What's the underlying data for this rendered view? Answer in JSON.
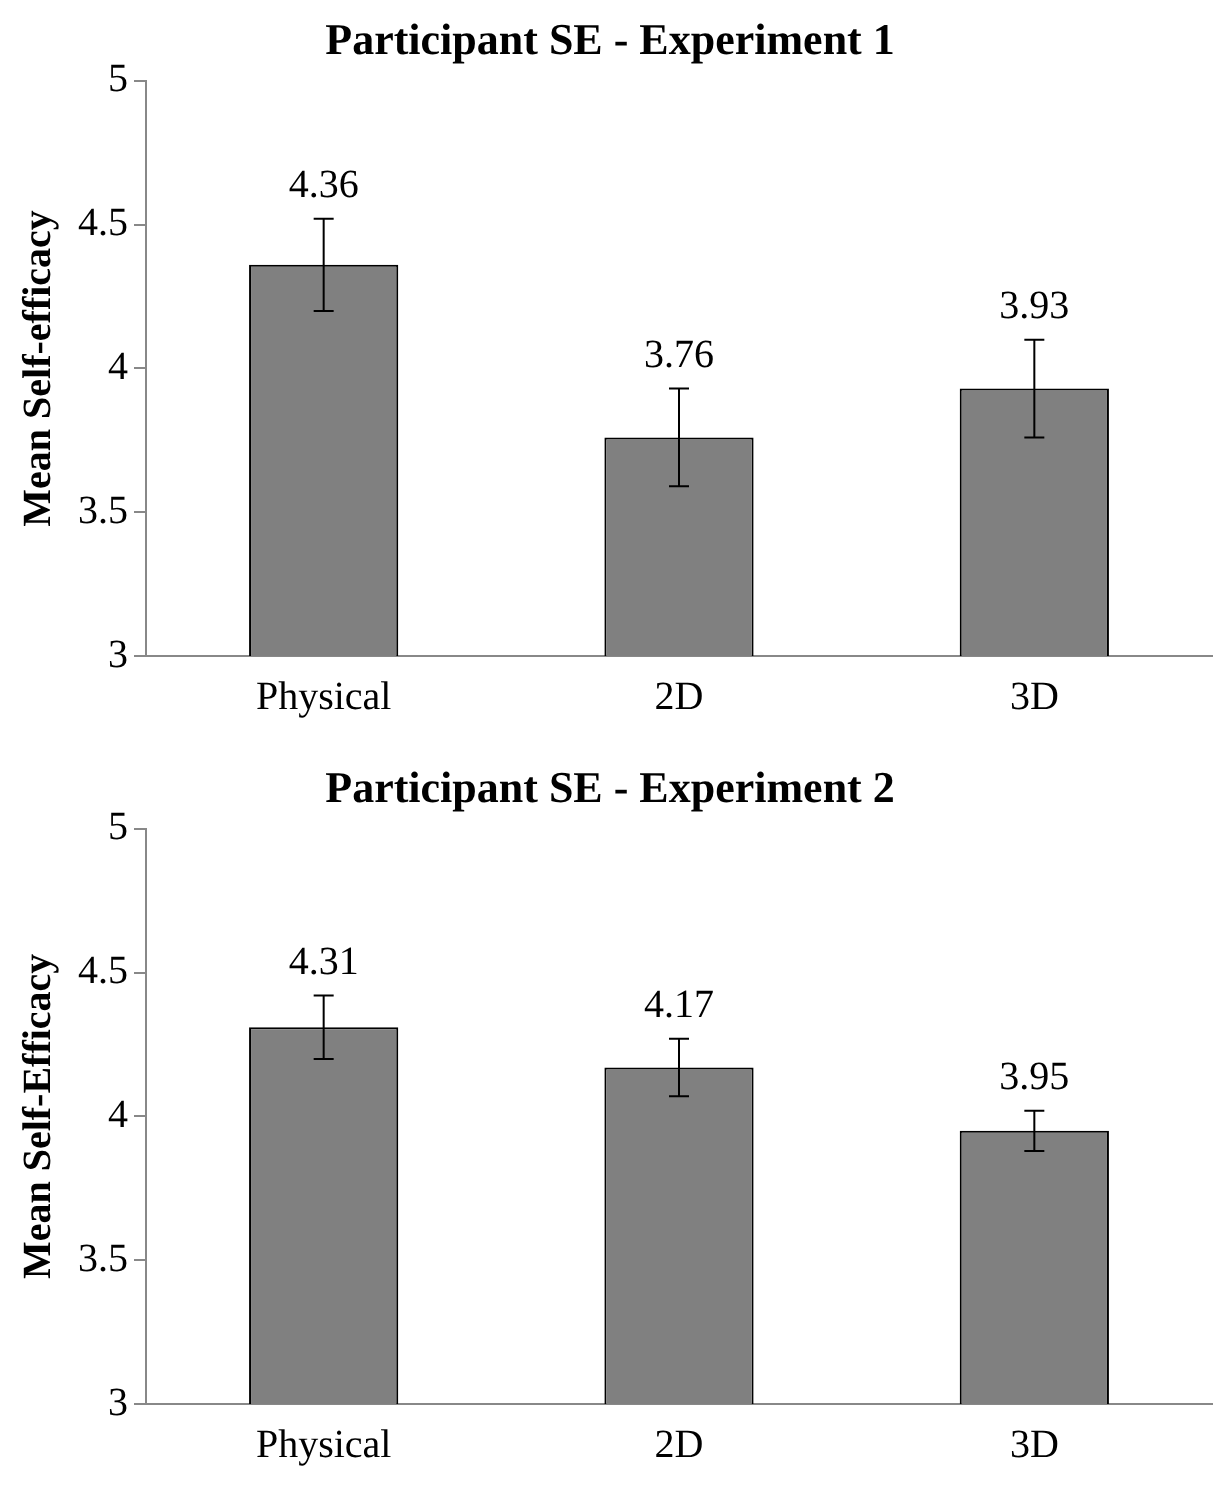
{
  "chart_data": [
    {
      "type": "bar",
      "title": "Participant SE - Experiment 1",
      "ylabel": "Mean Self-efficacy",
      "categories": [
        "Physical",
        "2D",
        "3D"
      ],
      "values": [
        4.36,
        3.76,
        3.93
      ],
      "errors": [
        0.16,
        0.17,
        0.17
      ],
      "color": "#808080",
      "ylim": [
        3,
        5
      ],
      "yticks": [
        3,
        3.5,
        4,
        4.5,
        5
      ],
      "grid": false,
      "legend": false,
      "data_labels": true
    },
    {
      "type": "bar",
      "title": "Participant SE - Experiment 2",
      "ylabel": "Mean Self-Efficacy",
      "categories": [
        "Physical",
        "2D",
        "3D"
      ],
      "values": [
        4.31,
        4.17,
        3.95
      ],
      "errors": [
        0.11,
        0.1,
        0.07
      ],
      "color": "#808080",
      "ylim": [
        3,
        5
      ],
      "yticks": [
        3,
        3.5,
        4,
        4.5,
        5
      ],
      "grid": false,
      "legend": false,
      "data_labels": true
    }
  ]
}
